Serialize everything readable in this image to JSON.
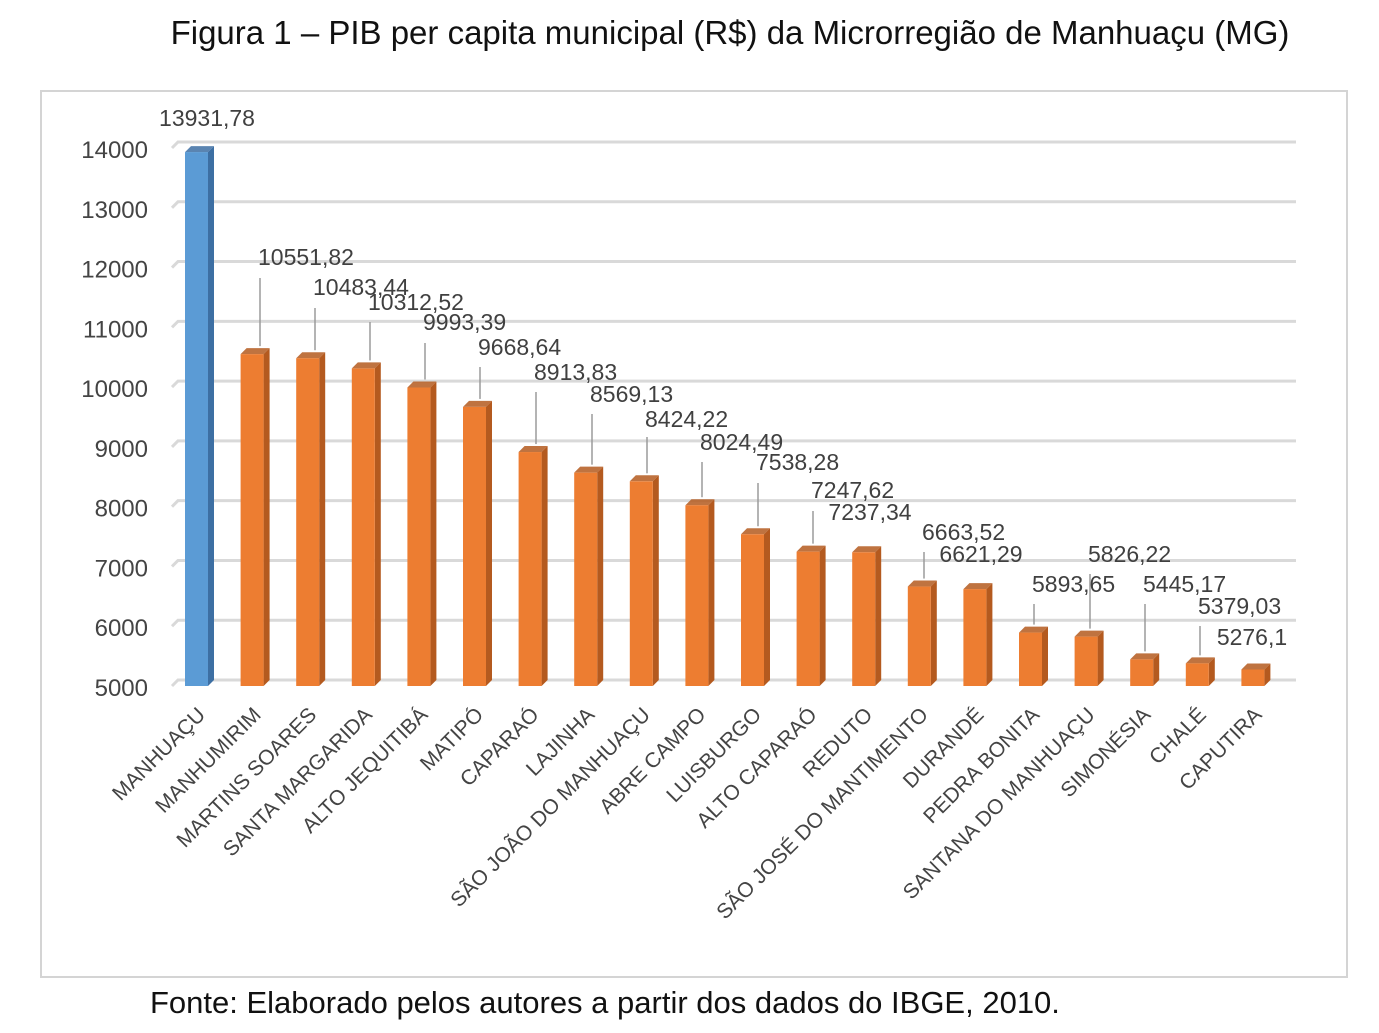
{
  "figure": {
    "title": "Figura 1 – PIB per capita municipal (R$) da Microrregião de Manhuaçu (MG)",
    "source": "Fonte: Elaborado pelos autores a partir dos dados do IBGE, 2010."
  },
  "chart_data": {
    "type": "bar",
    "style": "3d-column",
    "title": "",
    "xlabel": "",
    "ylabel": "",
    "ylim": [
      5000,
      14000
    ],
    "yticks": [
      "14000",
      "13000",
      "12000",
      "11000",
      "10000",
      "9000",
      "8000",
      "7000",
      "6000",
      "5000"
    ],
    "grid": true,
    "legend": "none",
    "colors": {
      "highlight": "#5b9bd5",
      "highlight_side": "#3d6fa3",
      "default": "#ed7d31",
      "default_side": "#b45a1f",
      "grid": "#d9d9d9",
      "leader": "#9a9a9a"
    },
    "categories": [
      "MANHUAÇU",
      "MANHUMIRIM",
      "MARTINS SOARES",
      "SANTA MARGARIDA",
      "ALTO JEQUITIBÁ",
      "MATIPÓ",
      "CAPARAÓ",
      "LAJINHA",
      "SÃO JOÃO DO MANHUAÇU",
      "ABRE CAMPO",
      "LUISBURGO",
      "ALTO CAPARAÓ",
      "REDUTO",
      "SÃO JOSÉ DO MANTIMENTO",
      "DURANDÉ",
      "PEDRA BONITA",
      "SANTANA DO MANHUAÇU",
      "SIMONÉSIA",
      "CHALÉ",
      "CAPUTIRA"
    ],
    "values": [
      13931.78,
      10551.82,
      10483.44,
      10312.52,
      9993.39,
      9668.64,
      8913.83,
      8569.13,
      8424.22,
      8024.49,
      7538.28,
      7247.62,
      7237.34,
      6663.52,
      6621.29,
      5893.65,
      5826.22,
      5445.17,
      5379.03,
      5276.1
    ],
    "data_labels": [
      "13931,78",
      "10551,82",
      "10483,44",
      "10312,52",
      "9993,39",
      "9668,64",
      "8913,83",
      "8569,13",
      "8424,22",
      "8024,49",
      "7538,28",
      "7247,62",
      "7237,34",
      "6663,52",
      "6621,29",
      "5893,65",
      "5826,22",
      "5445,17",
      "5379,03",
      "5276,1"
    ],
    "highlight": [
      "MANHUAÇU"
    ]
  }
}
